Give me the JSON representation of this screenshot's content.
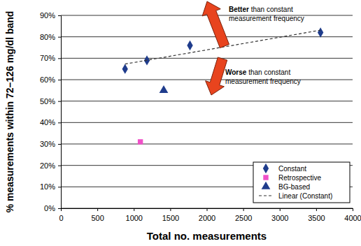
{
  "chart_data": {
    "type": "scatter",
    "xlabel": "Total no. measurements",
    "ylabel": "% measurements within 72–126 mg/dl band",
    "xlim": [
      0,
      4000
    ],
    "xticks": [
      0,
      500,
      1000,
      1500,
      2000,
      2500,
      3000,
      3500,
      4000
    ],
    "ylim": [
      0,
      90
    ],
    "yticks": [
      {
        "value": 0,
        "label": "0%"
      },
      {
        "value": 10,
        "label": "10%"
      },
      {
        "value": 20,
        "label": "20%"
      },
      {
        "value": 30,
        "label": "30%"
      },
      {
        "value": 40,
        "label": "40%"
      },
      {
        "value": 50,
        "label": "50%"
      },
      {
        "value": 60,
        "label": "60%"
      },
      {
        "value": 70,
        "label": "70%"
      },
      {
        "value": 80,
        "label": "80%"
      },
      {
        "value": 90,
        "label": "90%"
      }
    ],
    "grid": true,
    "legend": "lower right",
    "series": [
      {
        "name": "Constant",
        "type": "scatter",
        "marker": "diamond",
        "color": "#1f3c8c",
        "x": [
          880,
          1180,
          1770,
          3560
        ],
        "values": [
          65,
          69,
          76,
          82
        ]
      },
      {
        "name": "Retrospective",
        "type": "scatter",
        "marker": "square",
        "color": "#f050c8",
        "x": [
          1090
        ],
        "values": [
          31
        ]
      },
      {
        "name": "BG-based",
        "type": "scatter",
        "marker": "triangle",
        "color": "#1f3c8c",
        "x": [
          1410
        ],
        "values": [
          55
        ]
      },
      {
        "name": "Linear (Constant)",
        "type": "line",
        "line_style": "dashed",
        "color": "#333333",
        "x": [
          880,
          3560
        ],
        "values": [
          67.3,
          83.1
        ]
      }
    ],
    "annotations": [
      {
        "lines": [
          "Better than constant",
          "measurement frequency"
        ]
      },
      {
        "lines": [
          "Worse than constant",
          "measurement frequency"
        ]
      }
    ]
  }
}
